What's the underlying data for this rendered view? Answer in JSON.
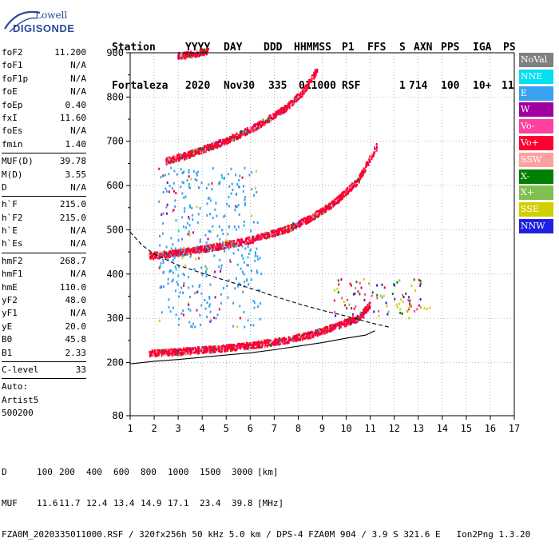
{
  "logo": {
    "line1": "Lowell",
    "line2": "DIGISONDE"
  },
  "header": {
    "labels": [
      "Station",
      "YYYY",
      "DAY",
      "DDD",
      "HHMMSS",
      "P1",
      "FFS",
      "S",
      "AXN",
      "PPS",
      "IGA",
      "PS"
    ],
    "values": [
      "Fortaleza",
      "2020",
      "Nov30",
      "335",
      "011000",
      "RSF",
      "1",
      "714",
      "100",
      "10+",
      "11"
    ]
  },
  "params": {
    "group1": [
      {
        "label": "foF2",
        "value": "11.200"
      },
      {
        "label": "foF1",
        "value": "N/A"
      },
      {
        "label": "foF1p",
        "value": "N/A"
      },
      {
        "label": "foE",
        "value": "N/A"
      },
      {
        "label": "foEp",
        "value": "0.40"
      },
      {
        "label": "fxI",
        "value": "11.60"
      },
      {
        "label": "foEs",
        "value": "N/A"
      },
      {
        "label": "fmin",
        "value": "1.40"
      }
    ],
    "group2": [
      {
        "label": "MUF(D)",
        "value": "39.78"
      },
      {
        "label": "M(D)",
        "value": "3.55"
      },
      {
        "label": "D",
        "value": "N/A"
      }
    ],
    "group3": [
      {
        "label": "h`F",
        "value": "215.0"
      },
      {
        "label": "h`F2",
        "value": "215.0"
      },
      {
        "label": "h`E",
        "value": "N/A"
      },
      {
        "label": "h`Es",
        "value": "N/A"
      }
    ],
    "group4": [
      {
        "label": "hmF2",
        "value": "268.7"
      },
      {
        "label": "hmF1",
        "value": "N/A"
      },
      {
        "label": "hmE",
        "value": "110.0"
      },
      {
        "label": "yF2",
        "value": "48.0"
      },
      {
        "label": "yF1",
        "value": "N/A"
      },
      {
        "label": "yE",
        "value": "20.0"
      },
      {
        "label": "B0",
        "value": "45.8"
      },
      {
        "label": "B1",
        "value": "2.33"
      }
    ],
    "group5": [
      {
        "label": "C-level",
        "value": "33"
      }
    ],
    "scaler": [
      "Auto:",
      "Artist5",
      "500200"
    ]
  },
  "legend": [
    {
      "label": "NoVal",
      "color": "#808080"
    },
    {
      "label": "NNE",
      "color": "#00e0f0"
    },
    {
      "label": "E",
      "color": "#3aa0f0"
    },
    {
      "label": "W",
      "color": "#a000a0"
    },
    {
      "label": "Vo-",
      "color": "#ff40a0"
    },
    {
      "label": "Vo+",
      "color": "#ff0030"
    },
    {
      "label": "SSW",
      "color": "#ffa0a0"
    },
    {
      "label": "X-",
      "color": "#008000"
    },
    {
      "label": "X+",
      "color": "#80c050"
    },
    {
      "label": "SSE",
      "color": "#d0d000"
    },
    {
      "label": "NNW",
      "color": "#2020e0"
    }
  ],
  "chart_data": {
    "type": "scatter",
    "x_ticks": [
      1,
      2,
      3,
      4,
      5,
      6,
      7,
      8,
      9,
      10,
      11,
      12,
      13,
      14,
      15,
      16,
      17
    ],
    "y_ticks": [
      80,
      200,
      300,
      400,
      500,
      600,
      700,
      800,
      900
    ],
    "xlim": [
      1,
      17
    ],
    "ylim": [
      80,
      900
    ],
    "x_unit": "MHz",
    "y_unit": "km",
    "grid": true,
    "legend_position": "right",
    "series": [
      {
        "name": "Vo+",
        "kind": "trace",
        "points": [
          [
            1.8,
            220
          ],
          [
            3,
            224
          ],
          [
            4.5,
            230
          ],
          [
            6,
            238
          ],
          [
            7.5,
            250
          ],
          [
            8.5,
            262
          ],
          [
            9.5,
            280
          ],
          [
            10.5,
            300
          ],
          [
            11,
            330
          ]
        ]
      },
      {
        "name": "Vo+",
        "kind": "trace",
        "points": [
          [
            1.8,
            440
          ],
          [
            3,
            447
          ],
          [
            4.5,
            460
          ],
          [
            6,
            476
          ],
          [
            7.5,
            500
          ],
          [
            8.5,
            525
          ],
          [
            9.5,
            560
          ],
          [
            10.5,
            610
          ],
          [
            11.3,
            690
          ]
        ]
      },
      {
        "name": "Vo+",
        "kind": "trace",
        "points": [
          [
            2.5,
            655
          ],
          [
            3.5,
            670
          ],
          [
            4.5,
            690
          ],
          [
            5.5,
            712
          ],
          [
            6.5,
            740
          ],
          [
            7.5,
            775
          ],
          [
            8.2,
            810
          ],
          [
            8.8,
            860
          ]
        ]
      },
      {
        "name": "Vo+",
        "kind": "trace",
        "points": [
          [
            3,
            892
          ],
          [
            3.5,
            895
          ],
          [
            4.3,
            905
          ]
        ]
      },
      {
        "name": "E",
        "kind": "cloud",
        "xrange": [
          2.2,
          6.5
        ],
        "yrange": [
          280,
          640
        ]
      },
      {
        "name": "X+",
        "kind": "cloud",
        "xrange": [
          9.5,
          13.2
        ],
        "yrange": [
          300,
          390
        ]
      },
      {
        "name": "SSE",
        "kind": "cloud",
        "xrange": [
          12,
          13.5
        ],
        "yrange": [
          310,
          345
        ]
      }
    ],
    "profile_curves": [
      {
        "style": "solid",
        "points": [
          [
            1.0,
            197
          ],
          [
            2,
            203
          ],
          [
            3,
            207
          ],
          [
            4,
            212
          ],
          [
            5,
            217
          ],
          [
            6,
            222
          ],
          [
            7,
            229
          ],
          [
            8,
            237
          ],
          [
            9,
            245
          ],
          [
            10,
            255
          ],
          [
            10.8,
            262
          ],
          [
            11.2,
            272
          ]
        ]
      },
      {
        "style": "dashed",
        "points": [
          [
            1.0,
            495
          ],
          [
            1.5,
            465
          ],
          [
            2,
            445
          ],
          [
            3,
            420
          ],
          [
            4,
            402
          ],
          [
            5,
            385
          ],
          [
            6,
            368
          ],
          [
            7,
            350
          ],
          [
            8,
            333
          ],
          [
            9,
            318
          ],
          [
            10,
            305
          ],
          [
            11,
            290
          ],
          [
            11.8,
            280
          ]
        ]
      }
    ]
  },
  "footer": {
    "dist_label": "D",
    "dist_values": [
      "100",
      "200",
      "400",
      "600",
      "800",
      "1000",
      "1500",
      "3000",
      "[km]"
    ],
    "muf_label": "MUF",
    "muf_values": [
      "11.6",
      "11.7",
      "12.4",
      "13.4",
      "14.9",
      "17.1",
      "23.4",
      "39.8",
      "[MHz]"
    ],
    "info": "FZA0M_2020335011000.RSF / 320fx256h 50 kHz 5.0 km / DPS-4 FZA0M 904 / 3.9 S 321.6 E   Ion2Png 1.3.20"
  }
}
